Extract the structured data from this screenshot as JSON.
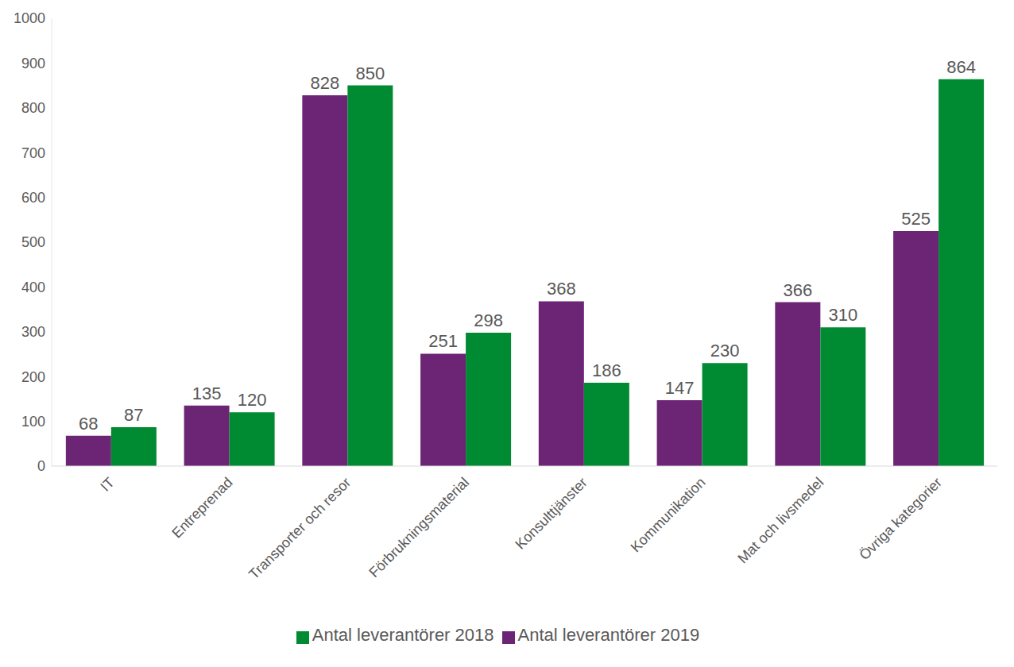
{
  "chart_data": {
    "type": "bar",
    "categories": [
      "IT",
      "Entreprenad",
      "Transporter och resor",
      "Förbrukningsmaterial",
      "Konsulttjänster",
      "Kommunikation",
      "Mat och livsmedel",
      "Övriga kategorier"
    ],
    "series": [
      {
        "name": "Antal leverantörer 2019",
        "color": "#6b2574",
        "values": [
          68,
          135,
          828,
          251,
          368,
          147,
          366,
          525
        ]
      },
      {
        "name": "Antal leverantörer 2018",
        "color": "#008a32",
        "values": [
          87,
          120,
          850,
          298,
          186,
          230,
          310,
          864
        ]
      }
    ],
    "ylim": [
      0,
      1000
    ],
    "yticks": [
      0,
      100,
      200,
      300,
      400,
      500,
      600,
      700,
      800,
      900,
      1000
    ],
    "grid": false,
    "legend": "bottom",
    "data_labels": true
  }
}
